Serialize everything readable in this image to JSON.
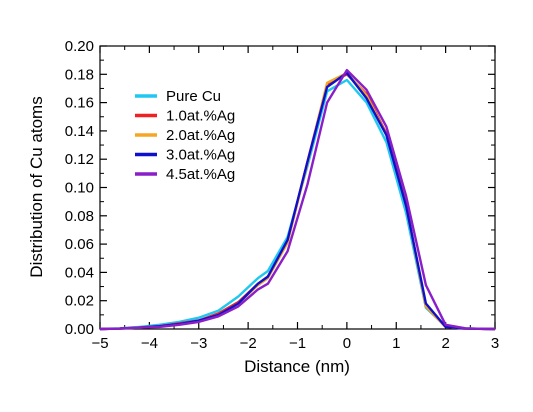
{
  "chart_data": {
    "type": "line",
    "xlabel": "Distance (nm)",
    "ylabel": "Distribution of Cu atoms",
    "xlim": [
      -5,
      3
    ],
    "ylim": [
      0,
      0.2
    ],
    "xticks": [
      -5,
      -4,
      -3,
      -2,
      -1,
      0,
      1,
      2,
      3
    ],
    "yticks": [
      0,
      0.02,
      0.04,
      0.06,
      0.08,
      0.1,
      0.12,
      0.14,
      0.16,
      0.18,
      0.2
    ],
    "xtick_labels": [
      "−5",
      "−4",
      "−3",
      "−2",
      "−1",
      "0",
      "1",
      "2",
      "3"
    ],
    "ytick_labels": [
      "0.00",
      "0.02",
      "0.04",
      "0.06",
      "0.08",
      "0.10",
      "0.12",
      "0.14",
      "0.16",
      "0.18",
      "0.20"
    ],
    "grid": false,
    "legend_position": "top-left",
    "x": [
      -5,
      -4.6,
      -4.2,
      -3.8,
      -3.4,
      -3.0,
      -2.6,
      -2.2,
      -1.8,
      -1.6,
      -1.2,
      -0.8,
      -0.4,
      0,
      0.4,
      0.8,
      1.2,
      1.6,
      2.0,
      2.4,
      2.8,
      3.0
    ],
    "series": [
      {
        "name": "Pure Cu",
        "color": "#1ec8ee",
        "values": [
          0.0,
          0.0005,
          0.0015,
          0.003,
          0.005,
          0.008,
          0.013,
          0.023,
          0.036,
          0.041,
          0.065,
          0.115,
          0.168,
          0.176,
          0.16,
          0.132,
          0.082,
          0.015,
          0.002,
          0.0005,
          0.0001,
          0.0
        ]
      },
      {
        "name": "1.0at.%Ag",
        "color": "#ee2222",
        "values": [
          0.0,
          0.0003,
          0.001,
          0.002,
          0.004,
          0.006,
          0.011,
          0.019,
          0.032,
          0.037,
          0.062,
          0.118,
          0.173,
          0.18,
          0.166,
          0.138,
          0.088,
          0.016,
          0.0015,
          0.0003,
          0.0001,
          0.0
        ]
      },
      {
        "name": "2.0at.%Ag",
        "color": "#f5a623",
        "values": [
          0.0,
          0.0003,
          0.001,
          0.002,
          0.0035,
          0.006,
          0.01,
          0.018,
          0.031,
          0.036,
          0.061,
          0.117,
          0.174,
          0.181,
          0.165,
          0.137,
          0.087,
          0.016,
          0.0015,
          0.0003,
          0.0001,
          0.0
        ]
      },
      {
        "name": "3.0at.%Ag",
        "color": "#1010cc",
        "values": [
          0.0,
          0.0003,
          0.001,
          0.002,
          0.0035,
          0.006,
          0.01,
          0.018,
          0.032,
          0.037,
          0.063,
          0.118,
          0.171,
          0.181,
          0.163,
          0.137,
          0.087,
          0.018,
          0.0015,
          0.0003,
          0.0001,
          0.0
        ]
      },
      {
        "name": "4.5at.%Ag",
        "color": "#8a1fc8",
        "values": [
          0.0,
          0.0003,
          0.001,
          0.0015,
          0.003,
          0.005,
          0.009,
          0.016,
          0.028,
          0.032,
          0.055,
          0.102,
          0.16,
          0.183,
          0.169,
          0.143,
          0.094,
          0.031,
          0.003,
          0.0005,
          0.0001,
          0.0
        ]
      }
    ]
  }
}
